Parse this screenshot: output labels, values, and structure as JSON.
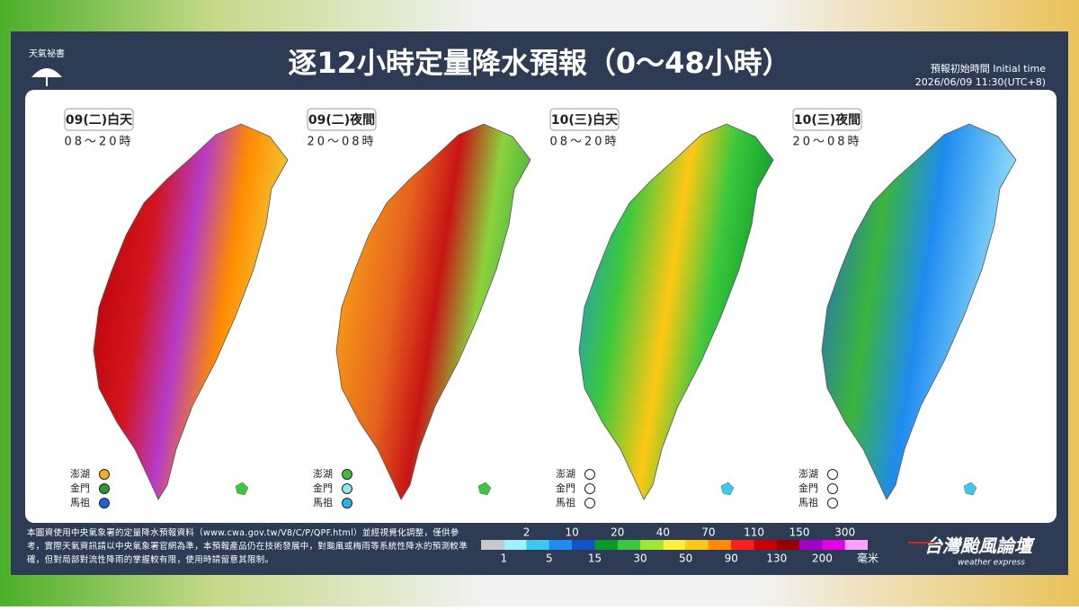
{
  "header": {
    "logo": "天氣祕書",
    "title": "逐12小時定量降水預報（0～48小時）",
    "init_label": "預報初始時間 Initial time",
    "init_time": "2026/06/09  11:30(UTC+8)"
  },
  "panels": [
    {
      "label": "09(二)白天",
      "period": "08～20時",
      "islands": [
        {
          "name": "澎湖",
          "color": "#f2b01e"
        },
        {
          "name": "金門",
          "color": "#2e9a2e"
        },
        {
          "name": "馬祖",
          "color": "#1a64d8"
        }
      ]
    },
    {
      "label": "09(二)夜間",
      "period": "20～08時",
      "islands": [
        {
          "name": "澎湖",
          "color": "#3cbf3c"
        },
        {
          "name": "金門",
          "color": "#8fe6f0"
        },
        {
          "name": "馬祖",
          "color": "#2ab0e8"
        }
      ]
    },
    {
      "label": "10(三)白天",
      "period": "08～20時",
      "islands": [
        {
          "name": "澎湖",
          "color": null
        },
        {
          "name": "金門",
          "color": null
        },
        {
          "name": "馬祖",
          "color": null
        }
      ]
    },
    {
      "label": "10(三)夜間",
      "period": "20～08時",
      "islands": [
        {
          "name": "澎湖",
          "color": null
        },
        {
          "name": "金門",
          "color": null
        },
        {
          "name": "馬祖",
          "color": null
        }
      ]
    }
  ],
  "footer": {
    "note": "本圖資使用中央氣象署的定量降水預報資料（www.cwa.gov.tw/V8/C/P/QPF.html）並經視覺化調整，僅供參考，實際天氣資訊請以中央氣象署官網為準，本預報產品仍在技術發展中，對颱風或梅雨等系統性降水的預測較準確，但對局部對流性降雨的掌握較有限，使用時請留意其限制。",
    "scale": {
      "values": [
        1,
        2,
        5,
        10,
        15,
        20,
        30,
        40,
        50,
        70,
        90,
        110,
        130,
        150,
        200,
        300
      ],
      "colors": [
        "#c8c8c8",
        "#9ef0fa",
        "#3cc8f0",
        "#1e8cf0",
        "#1450c8",
        "#0a9a2a",
        "#3cc83c",
        "#a0e632",
        "#fff03c",
        "#ffc814",
        "#ff8c00",
        "#ff1e1e",
        "#c80000",
        "#960000",
        "#a000c8",
        "#e600e6",
        "#ffa0ff"
      ],
      "unit": "毫米"
    },
    "brand": "台灣颱風論壇",
    "brand_sub": "weather express"
  }
}
